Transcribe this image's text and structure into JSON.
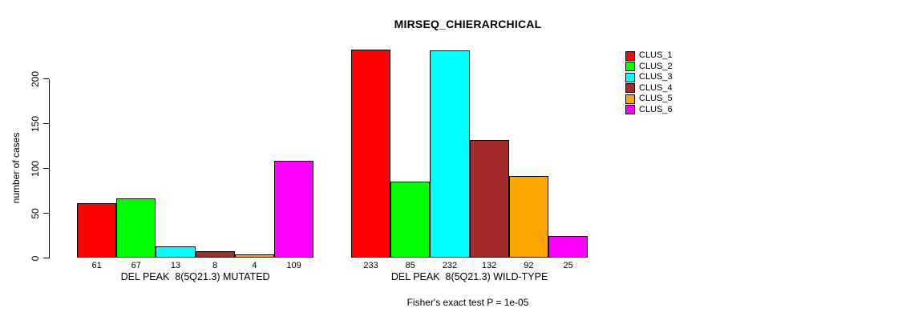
{
  "chart_data": {
    "type": "bar",
    "title": "MIRSEQ_CHIERARCHICAL",
    "ylabel": "number of cases",
    "xlabel": "",
    "footer": "Fisher's exact test P = 1e-05",
    "yticks": [
      0,
      50,
      100,
      150,
      200
    ],
    "ylim": [
      0,
      240
    ],
    "grid": false,
    "legend_position": "right",
    "bar_value_labels": true,
    "categories": [
      "DEL PEAK  8(5Q21.3) MUTATED",
      "DEL PEAK  8(5Q21.3) WILD-TYPE"
    ],
    "series": [
      {
        "name": "CLUS_1",
        "color": "#FF0000",
        "values": [
          61,
          233
        ]
      },
      {
        "name": "CLUS_2",
        "color": "#00FF00",
        "values": [
          67,
          85
        ]
      },
      {
        "name": "CLUS_3",
        "color": "#00FFFF",
        "values": [
          13,
          232
        ]
      },
      {
        "name": "CLUS_4",
        "color": "#A52A2A",
        "values": [
          8,
          132
        ]
      },
      {
        "name": "CLUS_5",
        "color": "#FFA500",
        "values": [
          4,
          92
        ]
      },
      {
        "name": "CLUS_6",
        "color": "#FF00FF",
        "values": [
          109,
          25
        ]
      }
    ]
  }
}
